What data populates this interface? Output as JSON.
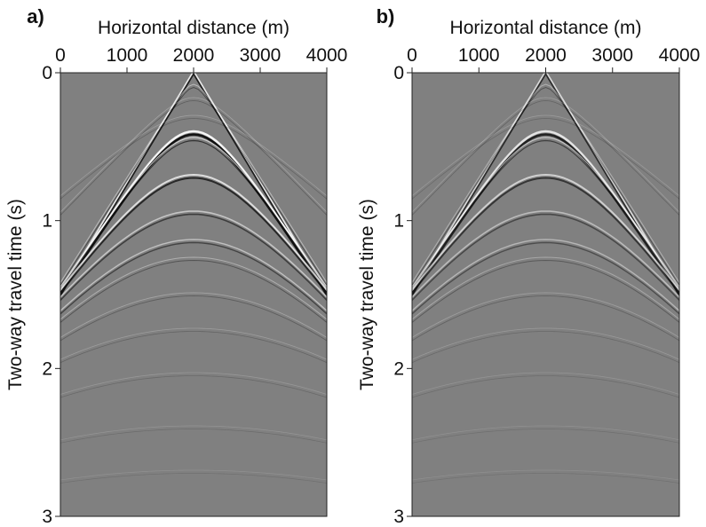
{
  "panels": [
    {
      "label": "a)",
      "x_axis": {
        "title": "Horizontal distance (m)",
        "lim": [
          0,
          4000
        ],
        "ticks": [
          0,
          1000,
          2000,
          3000,
          4000
        ]
      },
      "y_axis": {
        "title": "Two-way travel time (s)",
        "lim": [
          0,
          3
        ],
        "ticks": [
          0,
          1,
          2,
          3
        ]
      }
    },
    {
      "label": "b)",
      "x_axis": {
        "title": "Horizontal distance (m)",
        "lim": [
          0,
          4000
        ],
        "ticks": [
          0,
          1000,
          2000,
          3000,
          4000
        ]
      },
      "y_axis": {
        "title": "Two-way travel time (s)",
        "lim": [
          0,
          3
        ],
        "ticks": [
          0,
          1,
          2,
          3
        ]
      }
    }
  ]
}
